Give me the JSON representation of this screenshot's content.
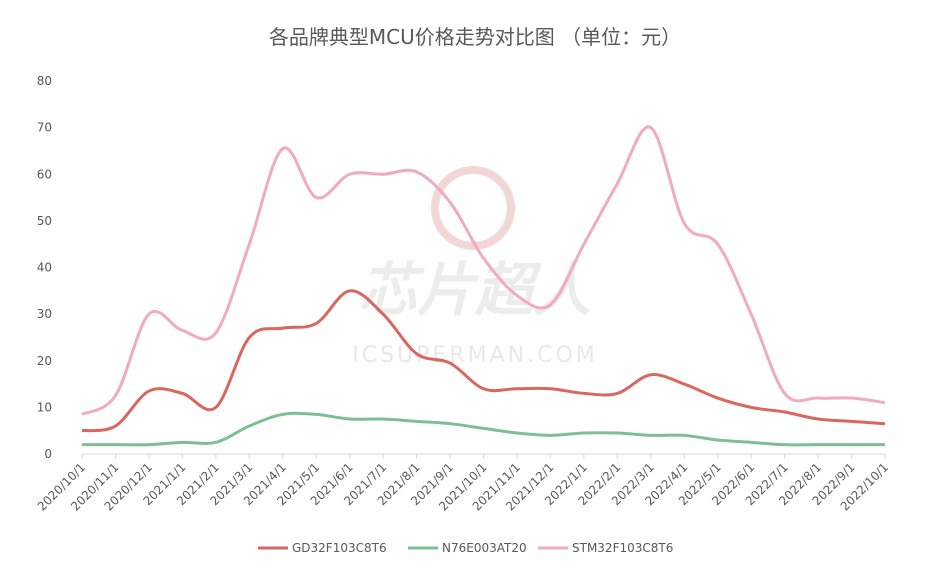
{
  "chart_data": {
    "type": "line",
    "title": "各品牌典型MCU价格走势对比图 （单位：元）",
    "watermark": [
      "芯片超人",
      "ICSUPERMAN.COM"
    ],
    "categories": [
      "2020/10/1",
      "2020/11/1",
      "2020/12/1",
      "2021/1/1",
      "2021/2/1",
      "2021/3/1",
      "2021/4/1",
      "2021/5/1",
      "2021/6/1",
      "2021/7/1",
      "2021/8/1",
      "2021/9/1",
      "2021/10/1",
      "2021/11/1",
      "2021/12/1",
      "2022/1/1",
      "2022/2/1",
      "2022/3/1",
      "2022/4/1",
      "2022/5/1",
      "2022/6/1",
      "2022/7/1",
      "2022/8/1",
      "2022/9/1",
      "2022/10/1"
    ],
    "series": [
      {
        "name": "GD32F103C8T6",
        "color": "#d9675e",
        "values": [
          5,
          6,
          13.5,
          13,
          10,
          25,
          27,
          28,
          35,
          30,
          21.5,
          19.5,
          14,
          14,
          14,
          13,
          13,
          17,
          15,
          12,
          10,
          9,
          7.5,
          7,
          6.5
        ]
      },
      {
        "name": "N76E003AT20",
        "color": "#7dbf94",
        "values": [
          2,
          2,
          2,
          2.5,
          2.5,
          6,
          8.5,
          8.5,
          7.5,
          7.5,
          7,
          6.5,
          5.5,
          4.5,
          4,
          4.5,
          4.5,
          4,
          4,
          3,
          2.5,
          2,
          2,
          2,
          2
        ]
      },
      {
        "name": "STM32F103C8T6",
        "color": "#f2aac0",
        "values": [
          8.5,
          12.5,
          30,
          26.5,
          26,
          45,
          65.5,
          55,
          60,
          60,
          60.5,
          54,
          42,
          34,
          32,
          45,
          58,
          70,
          49.5,
          45,
          30,
          13,
          12,
          12,
          11
        ]
      }
    ],
    "ylim": [
      0,
      80
    ],
    "yticks": [
      0,
      10,
      20,
      30,
      40,
      50,
      60,
      70,
      80
    ],
    "grid": false,
    "legend": "bottom"
  }
}
